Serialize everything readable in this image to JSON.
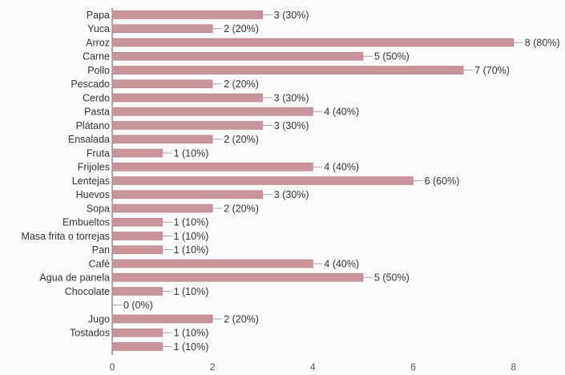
{
  "chart_data": {
    "type": "bar",
    "orientation": "horizontal",
    "categories": [
      "Papa",
      "Yuca",
      "Arroz",
      "Carne",
      "Pollo",
      "Pescado",
      "Cerdo",
      "Pasta",
      "Plátano",
      "Ensalada",
      "Fruta",
      "Frijoles",
      "Lentejas",
      "Huevos",
      "Sopa",
      "Embueltos",
      "Masa frita o torrejas",
      "Pan",
      "Café",
      "Agua de panela",
      "Chocolate",
      "",
      "Jugo",
      "Tostados",
      ""
    ],
    "values": [
      3,
      2,
      8,
      5,
      7,
      2,
      3,
      4,
      3,
      2,
      1,
      4,
      6,
      3,
      2,
      1,
      1,
      1,
      4,
      5,
      1,
      0,
      2,
      1,
      1
    ],
    "data_labels": [
      "3 (30%)",
      "2 (20%)",
      "8 (80%)",
      "5 (50%)",
      "7 (70%)",
      "2 (20%)",
      "3 (30%)",
      "4 (40%)",
      "3 (30%)",
      "2 (20%)",
      "1 (10%)",
      "4 (40%)",
      "6 (60%)",
      "3 (30%)",
      "2 (20%)",
      "1 (10%)",
      "1 (10%)",
      "1 (10%)",
      "4 (40%)",
      "5 (50%)",
      "1 (10%)",
      "0 (0%)",
      "2 (20%)",
      "1 (10%)",
      "1 (10%)"
    ],
    "xlim": [
      0,
      8
    ],
    "xticks": [
      "0",
      "2",
      "4",
      "6",
      "8"
    ],
    "grid": false,
    "bar_color": "#c9959b",
    "bar_stroke": "#b57f86",
    "axis_color": "#555555"
  }
}
